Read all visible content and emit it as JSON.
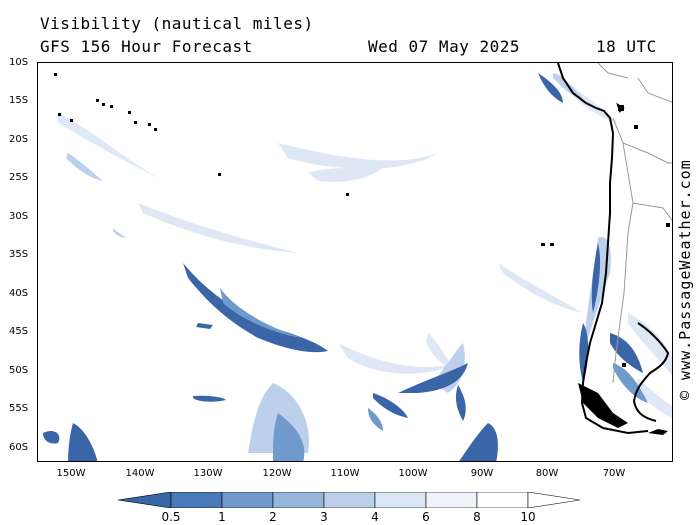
{
  "header": {
    "title": "Visibility (nautical miles)",
    "subtitle": "GFS 156 Hour Forecast",
    "date": "Wed 07 May 2025",
    "time": "18 UTC"
  },
  "credit": "© www.PassageWeather.com",
  "map": {
    "lat_labels": [
      "10S",
      "15S",
      "20S",
      "25S",
      "30S",
      "35S",
      "40S",
      "45S",
      "50S",
      "55S",
      "60S"
    ],
    "lon_labels": [
      "150W",
      "140W",
      "130W",
      "120W",
      "110W",
      "100W",
      "90W",
      "80W",
      "70W"
    ],
    "lat_range": [
      -10,
      -62
    ],
    "lon_range": [
      -155,
      -64
    ]
  },
  "legend": {
    "labels": [
      "0.5",
      "1",
      "2",
      "3",
      "4",
      "6",
      "8",
      "10"
    ],
    "colors": [
      "#3a66a8",
      "#4a7ab9",
      "#7099cc",
      "#97b6dc",
      "#bcd0eb",
      "#dbe6f5",
      "#eef3fa",
      "#ffffff"
    ]
  }
}
